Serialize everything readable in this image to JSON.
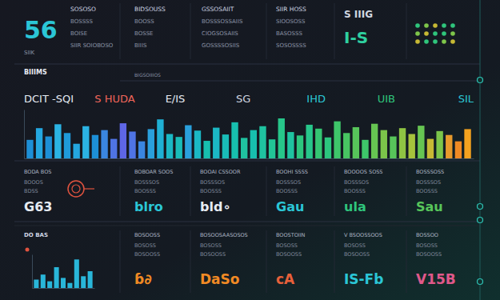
{
  "header": {
    "kpi": "56",
    "kpi_label": "SIIK",
    "columns": [
      [
        "SOSOSO",
        "BOSSSS",
        "BOISE",
        "SIIR SOIOBOSO"
      ],
      [
        "BIDSOUSS",
        "BOOSS",
        "BOSSE",
        "BIIIS"
      ],
      [
        "GSSOSAIIT",
        "BOSSSOSSAIIS",
        "CIOGSOSAIIS",
        "GOSSSSOSIIS"
      ],
      [
        "SIIR HOSS",
        "SIOOSOSS",
        "BASOSSS",
        "SOSOSSSS"
      ]
    ],
    "highlight": [
      "S IIIG",
      "I-S"
    ]
  },
  "section": {
    "title": "BIIIMS",
    "subtitle": "BIGSOIIIOS"
  },
  "chart_data": [
    {
      "type": "bar",
      "categories": [
        null,
        null,
        null,
        null,
        null,
        null,
        null,
        null,
        null,
        null,
        null,
        null,
        null,
        null,
        null,
        null,
        null,
        null,
        null,
        null,
        null,
        null,
        null,
        null,
        null,
        null,
        null,
        null,
        null,
        null,
        null,
        null,
        null,
        null,
        null,
        null,
        null,
        null,
        null,
        null,
        null,
        null,
        null,
        null,
        null,
        null,
        null,
        null
      ],
      "values": [
        38,
        62,
        45,
        70,
        52,
        30,
        66,
        48,
        58,
        40,
        72,
        55,
        35,
        60,
        80,
        50,
        44,
        68,
        57,
        36,
        63,
        49,
        74,
        42,
        58,
        66,
        39,
        82,
        54,
        47,
        69,
        61,
        43,
        76,
        52,
        64,
        38,
        71,
        58,
        45,
        62,
        50,
        67,
        40,
        56,
        48,
        35,
        60
      ],
      "colors": [
        "#1d8fd6",
        "#24a7e0",
        "#1d8fd6",
        "#2bb3e3",
        "#1f9ad9",
        "#24a7e0",
        "#2bb3e3",
        "#1d8fd6",
        "#3a86e0",
        "#4f74e4",
        "#5e66e6",
        "#4f74e4",
        "#3a86e0",
        "#2aa0dc",
        "#1fb0d4",
        "#1bb8c4",
        "#19bcb8",
        "#2aa0dc",
        "#1bb8c4",
        "#17bfae",
        "#1bb8c4",
        "#19bcb8",
        "#17bfae",
        "#1fc3a0",
        "#17bfae",
        "#1fc3a0",
        "#22c596",
        "#27c68a",
        "#1fc3a0",
        "#2cc67e",
        "#27c68a",
        "#34c673",
        "#2cc67e",
        "#3ec66a",
        "#48c562",
        "#57c55a",
        "#3ec66a",
        "#66c552",
        "#7bc54a",
        "#57c55a",
        "#8fc443",
        "#a6c23c",
        "#66c552",
        "#c7b934",
        "#7bc54a",
        "#e89a2c",
        "#f08a24",
        "#f4a21f"
      ],
      "ylim": [
        0,
        100
      ],
      "tick_labels": false,
      "annotations": [
        "DCIT -SQI",
        "S HUDA",
        "E/IS",
        "SG",
        "IHD",
        "UIB",
        "SIL"
      ]
    },
    {
      "type": "bar",
      "title": "DO BAS",
      "categories": [
        null,
        null,
        null,
        null,
        null,
        null,
        null,
        null,
        null
      ],
      "values": [
        25,
        40,
        20,
        62,
        30,
        15,
        85,
        35,
        50
      ],
      "color": "#29b6d9",
      "ylim": [
        0,
        100
      ],
      "tick_labels": false
    }
  ],
  "cards": [
    {
      "title": "BODA BOS",
      "lines": [
        "BOOOS",
        "BDSS"
      ],
      "value": "G63"
    },
    {
      "title": "BOBOAR SOOS",
      "lines": [
        "BOSSSOS",
        "BOOSSS"
      ],
      "value": "blro"
    },
    {
      "title": "BOOAI CSSOOR",
      "lines": [
        "BOSSSOS",
        "BOOSSS"
      ],
      "value": "bld∘"
    },
    {
      "title": "BOOHI SSSS",
      "lines": [
        "BOSSSOS",
        "BOOSSS"
      ],
      "value": "Gau"
    },
    {
      "title": "BOOOOS SOSS",
      "lines": [
        "BOSSSOS",
        "BOOSSS"
      ],
      "value": "ula"
    },
    {
      "title": "BOSSSOSS",
      "lines": [
        "BOSSSOS",
        "BOOSSS"
      ],
      "value": "Sau"
    }
  ],
  "cards_bottom": [
    {
      "title": "BOSOOSS",
      "lines": [
        "BOSOSS",
        "BOSOOSS"
      ],
      "value": "ɓ∂"
    },
    {
      "title": "BOSOOSAASOSOS",
      "lines": [
        "BOSOSS",
        "BOSOOSS"
      ],
      "value": "DaSo"
    },
    {
      "title": "BOOSTOIIN",
      "lines": [
        "BOSOSS",
        "BOSOOSS"
      ],
      "value": "cA"
    },
    {
      "title": "V BSOOSSOOS",
      "lines": [
        "BOSOSS",
        "BOSOOSS"
      ],
      "value": "IS-Fb"
    },
    {
      "title": "BOSSOO",
      "lines": [
        "BOSOSS",
        "BOSOOSS"
      ],
      "value": "V15B"
    }
  ]
}
